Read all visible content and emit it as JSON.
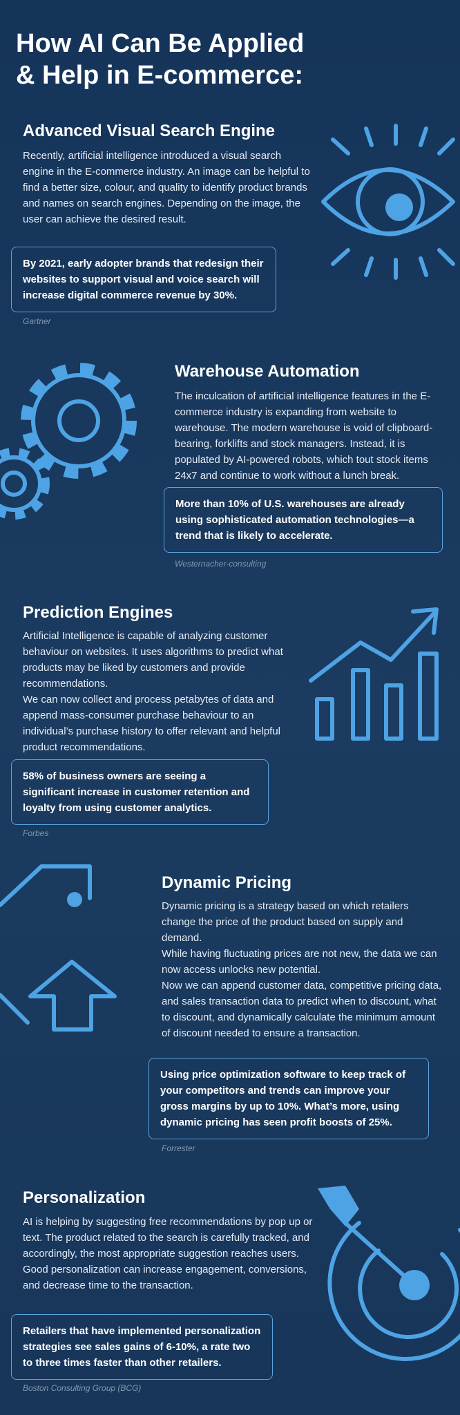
{
  "title": [
    "How AI Can Be Applied",
    "& Help in E-commerce:"
  ],
  "sections": [
    {
      "heading": "Advanced Visual Search Engine",
      "paragraphs": [
        "Recently, artificial intelligence introduced a visual search engine in the E-commerce industry. An image can be helpful to find a better size, colour, and quality to identify product brands and names on search engines. Depending on the image, the user can achieve the desired result."
      ],
      "callout": "By 2021, early adopter brands that redesign their websites to support visual and voice search will increase digital commerce revenue by 30%.",
      "source": "Gartner"
    },
    {
      "heading": "Warehouse Automation",
      "paragraphs": [
        "The inculcation of artificial intelligence features in the E-commerce industry is expanding from website to warehouse. The modern warehouse is void of clipboard-bearing, forklifts and stock managers. Instead, it is populated by AI-powered robots, which tout stock items 24x7 and continue to work without a lunch break."
      ],
      "callout": "More than 10% of U.S. warehouses are already using sophisticated automation technologies—a trend that is likely to accelerate.",
      "source": "Westernacher-consulting"
    },
    {
      "heading": "Prediction Engines",
      "paragraphs": [
        "Artificial Intelligence is capable of analyzing customer behaviour on websites. It uses algorithms to predict what products may be liked by customers and provide recommendations.",
        "We can now collect and process petabytes of data and append mass-consumer purchase behaviour to an individual’s purchase history to offer relevant and helpful product recommendations."
      ],
      "callout": "58% of business owners are seeing a significant increase in customer retention and loyalty from using customer analytics.",
      "source": "Forbes"
    },
    {
      "heading": "Dynamic Pricing",
      "paragraphs": [
        "Dynamic pricing is a strategy based on which retailers change the price of the product based on supply and demand.",
        "While having fluctuating prices are not new, the data we can now access unlocks new potential.",
        "Now we can append customer data, competitive pricing data, and sales transaction data to predict when to discount, what to discount, and dynamically calculate the minimum amount of discount needed to ensure a transaction."
      ],
      "callout": "Using price optimization software to keep track of your competitors and trends can improve your gross margins by up to 10%. What’s more, using dynamic pricing has seen profit boosts of 25%.",
      "source": "Forrester"
    },
    {
      "heading": "Personalization",
      "paragraphs": [
        "AI is helping by suggesting free recommendations by pop up or text. The product related to the search is carefully tracked, and accordingly, the most appropriate suggestion reaches users.",
        "Good personalization can increase engagement, conversions, and decrease time to the transaction."
      ],
      "callout": "Retailers that have implemented personalization strategies see sales gains of 6-10%, a rate two to three times faster than other retailers.",
      "source": "Boston Consulting Group (BCG)"
    }
  ]
}
